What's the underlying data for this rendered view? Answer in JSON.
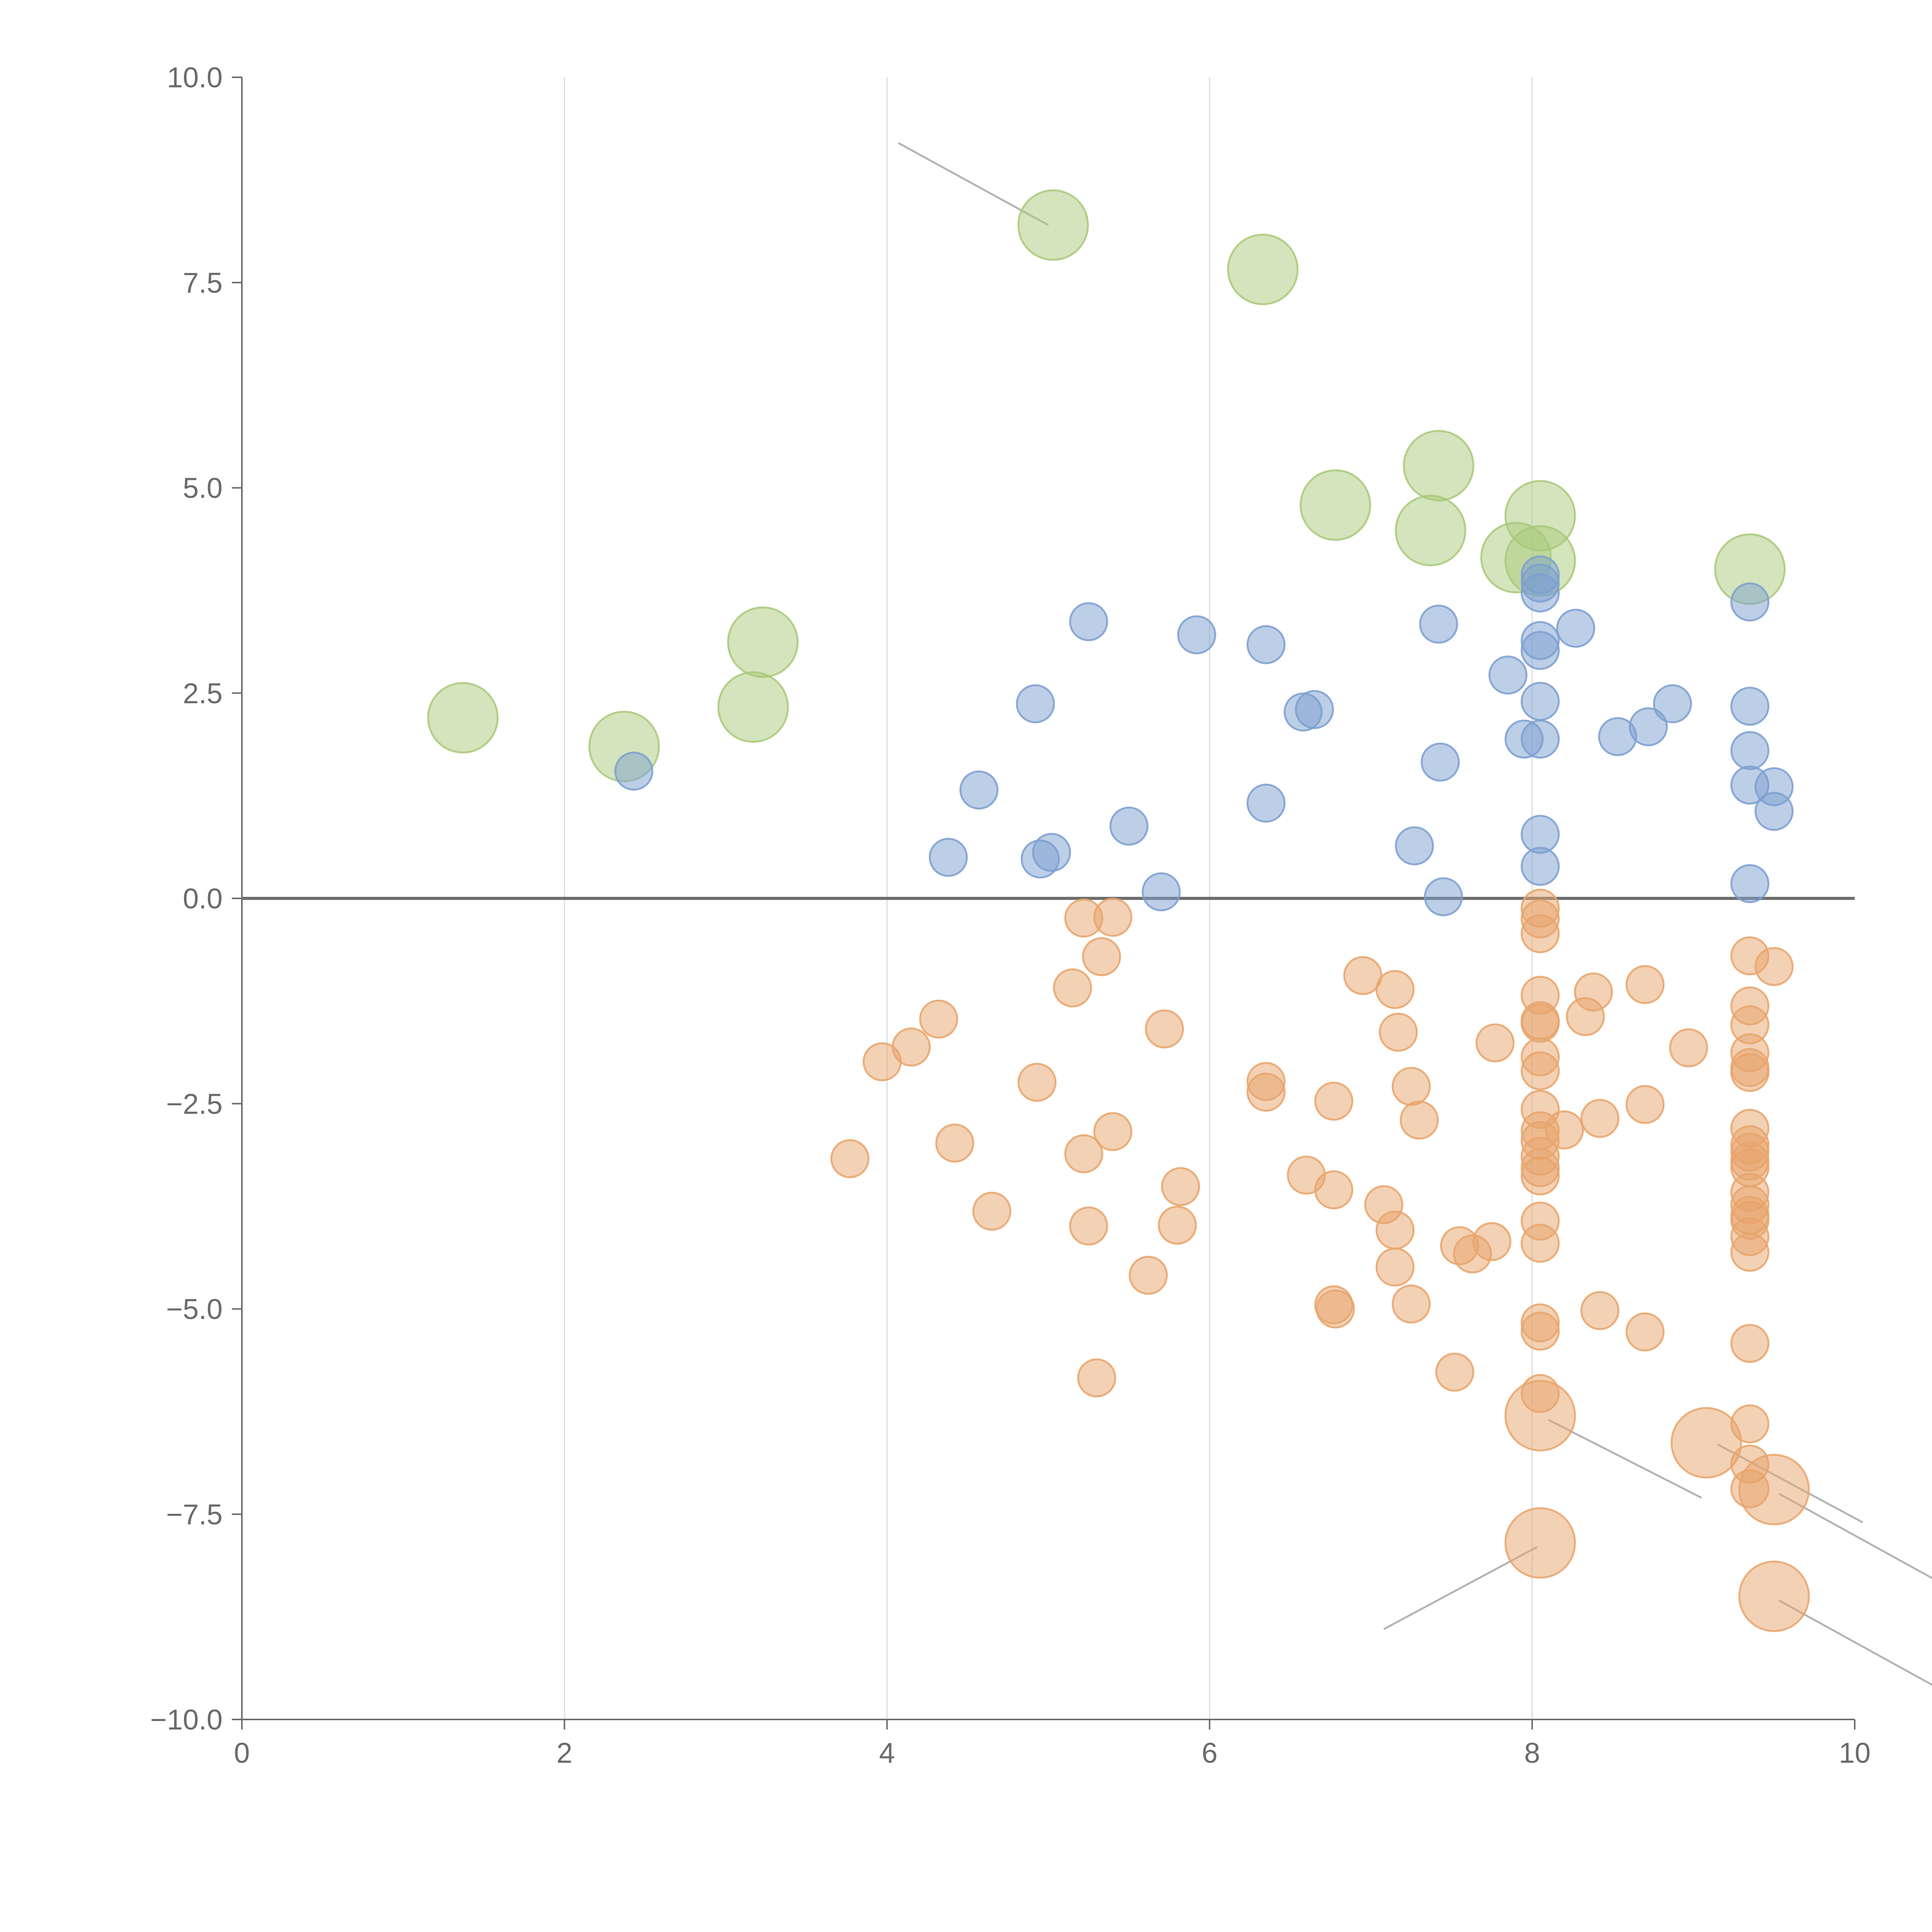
{
  "colors": {
    "green": "#a9c97a",
    "blue": "#7c9fd0",
    "orange": "#e8a46b",
    "axis": "#6e6e6e",
    "grid": "#dcdcdc"
  },
  "chart_data": {
    "type": "scatter",
    "title": "",
    "xlabel": "",
    "ylabel": "",
    "xlim": [
      0,
      10
    ],
    "ylim": [
      -10,
      10
    ],
    "x_ticks": [
      {
        "value": 0,
        "label": "0"
      },
      {
        "value": 2,
        "label": "2"
      },
      {
        "value": 4,
        "label": "4"
      },
      {
        "value": 6,
        "label": "6"
      },
      {
        "value": 8,
        "label": "8"
      },
      {
        "value": 10,
        "label": "10"
      }
    ],
    "y_ticks": [
      {
        "value": 10,
        "label": "10.0"
      },
      {
        "value": 7.5,
        "label": "7.5"
      },
      {
        "value": 5,
        "label": "5.0"
      },
      {
        "value": 2.5,
        "label": "2.5"
      },
      {
        "value": 0,
        "label": "0.0"
      },
      {
        "value": -2.5,
        "label": "−2.5"
      },
      {
        "value": -5,
        "label": "−5.0"
      },
      {
        "value": -7.5,
        "label": "−7.5"
      },
      {
        "value": -10,
        "label": "−10.0"
      }
    ],
    "grid": "vertical",
    "series": [
      {
        "name": "green",
        "color": "#a9c97a",
        "size": "large",
        "points": [
          [
            1.37,
            2.2
          ],
          [
            2.37,
            1.85
          ],
          [
            3.23,
            3.12
          ],
          [
            3.17,
            2.33
          ],
          [
            5.03,
            8.2
          ],
          [
            6.33,
            7.66
          ],
          [
            6.78,
            4.79
          ],
          [
            7.42,
            5.27
          ],
          [
            7.37,
            4.48
          ],
          [
            8.05,
            4.66
          ],
          [
            8.05,
            4.11
          ],
          [
            7.9,
            4.15
          ],
          [
            9.35,
            4.01
          ]
        ]
      },
      {
        "name": "blue",
        "color": "#7c9fd0",
        "size": "medium",
        "points": [
          [
            2.43,
            1.55
          ],
          [
            4.38,
            0.5
          ],
          [
            4.57,
            1.32
          ],
          [
            4.92,
            2.37
          ],
          [
            4.95,
            0.48
          ],
          [
            5.02,
            0.56
          ],
          [
            5.25,
            3.37
          ],
          [
            5.5,
            0.88
          ],
          [
            5.7,
            0.08
          ],
          [
            5.92,
            3.21
          ],
          [
            6.35,
            3.09
          ],
          [
            6.35,
            1.16
          ],
          [
            6.58,
            2.27
          ],
          [
            6.65,
            2.3
          ],
          [
            7.27,
            0.64
          ],
          [
            7.42,
            3.34
          ],
          [
            7.43,
            1.66
          ],
          [
            7.45,
            0.02
          ],
          [
            7.85,
            2.72
          ],
          [
            7.95,
            1.94
          ],
          [
            8.05,
            3.94
          ],
          [
            8.05,
            3.84
          ],
          [
            8.05,
            3.72
          ],
          [
            8.05,
            3.14
          ],
          [
            8.05,
            3.02
          ],
          [
            8.05,
            2.4
          ],
          [
            8.05,
            1.94
          ],
          [
            8.05,
            0.78
          ],
          [
            8.05,
            0.39
          ],
          [
            8.27,
            3.29
          ],
          [
            8.53,
            1.97
          ],
          [
            8.72,
            2.09
          ],
          [
            8.87,
            2.37
          ],
          [
            9.35,
            3.61
          ],
          [
            9.35,
            2.34
          ],
          [
            9.35,
            1.8
          ],
          [
            9.35,
            1.38
          ],
          [
            9.35,
            0.18
          ],
          [
            9.5,
            1.36
          ],
          [
            9.5,
            1.06
          ]
        ]
      },
      {
        "name": "orange",
        "color": "#e8a46b",
        "size": "medium",
        "points": [
          [
            3.77,
            -3.17
          ],
          [
            3.97,
            -1.99
          ],
          [
            4.15,
            -1.81
          ],
          [
            4.32,
            -1.47
          ],
          [
            4.42,
            -2.98
          ],
          [
            4.65,
            -3.81
          ],
          [
            4.93,
            -2.24
          ],
          [
            5.15,
            -1.09
          ],
          [
            5.22,
            -0.24
          ],
          [
            5.22,
            -3.11
          ],
          [
            5.25,
            -3.99
          ],
          [
            5.3,
            -5.84
          ],
          [
            5.33,
            -0.71
          ],
          [
            5.4,
            -0.23
          ],
          [
            5.4,
            -2.84
          ],
          [
            5.62,
            -4.59
          ],
          [
            5.72,
            -1.59
          ],
          [
            5.8,
            -3.98
          ],
          [
            5.82,
            -3.51
          ],
          [
            6.35,
            -2.23
          ],
          [
            6.35,
            -2.36
          ],
          [
            6.6,
            -3.37
          ],
          [
            6.77,
            -2.47
          ],
          [
            6.77,
            -3.55
          ],
          [
            6.77,
            -4.95
          ],
          [
            6.78,
            -5.0
          ],
          [
            6.95,
            -0.94
          ],
          [
            7.08,
            -3.73
          ],
          [
            7.15,
            -1.11
          ],
          [
            7.15,
            -4.04
          ],
          [
            7.15,
            -4.49
          ],
          [
            7.17,
            -1.63
          ],
          [
            7.25,
            -2.29
          ],
          [
            7.25,
            -4.94
          ],
          [
            7.3,
            -2.7
          ],
          [
            7.52,
            -5.77
          ],
          [
            7.55,
            -4.23
          ],
          [
            7.63,
            -4.33
          ],
          [
            7.75,
            -4.18
          ],
          [
            7.77,
            -1.76
          ],
          [
            8.05,
            -0.12
          ],
          [
            8.05,
            -0.25
          ],
          [
            8.05,
            -0.43
          ],
          [
            8.05,
            -1.18
          ],
          [
            8.05,
            -1.49
          ],
          [
            8.05,
            -1.52
          ],
          [
            8.05,
            -1.93
          ],
          [
            8.05,
            -2.1
          ],
          [
            8.05,
            -2.57
          ],
          [
            8.05,
            -2.83
          ],
          [
            8.05,
            -2.95
          ],
          [
            8.05,
            -3.14
          ],
          [
            8.05,
            -3.28
          ],
          [
            8.05,
            -3.38
          ],
          [
            8.05,
            -3.93
          ],
          [
            8.05,
            -4.2
          ],
          [
            8.05,
            -5.17
          ],
          [
            8.05,
            -5.27
          ],
          [
            8.05,
            -6.03
          ],
          [
            8.2,
            -2.82
          ],
          [
            8.33,
            -1.44
          ],
          [
            8.38,
            -1.14
          ],
          [
            8.42,
            -2.68
          ],
          [
            8.42,
            -5.02
          ],
          [
            8.7,
            -1.05
          ],
          [
            8.7,
            -5.28
          ],
          [
            8.7,
            -2.51
          ],
          [
            8.97,
            -1.82
          ],
          [
            9.35,
            -0.7
          ],
          [
            9.35,
            -1.31
          ],
          [
            9.35,
            -1.54
          ],
          [
            9.35,
            -1.88
          ],
          [
            9.35,
            -2.06
          ],
          [
            9.35,
            -2.12
          ],
          [
            9.35,
            -2.8
          ],
          [
            9.35,
            -3.0
          ],
          [
            9.35,
            -3.09
          ],
          [
            9.35,
            -3.2
          ],
          [
            9.35,
            -3.28
          ],
          [
            9.35,
            -3.58
          ],
          [
            9.35,
            -3.73
          ],
          [
            9.35,
            -3.86
          ],
          [
            9.35,
            -3.92
          ],
          [
            9.35,
            -4.12
          ],
          [
            9.35,
            -4.31
          ],
          [
            9.35,
            -5.42
          ],
          [
            9.35,
            -6.4
          ],
          [
            9.35,
            -6.89
          ],
          [
            9.35,
            -7.19
          ],
          [
            9.5,
            -0.83
          ]
        ]
      },
      {
        "name": "orange-large",
        "color": "#e8a46b",
        "size": "large",
        "points": [
          [
            8.05,
            -6.3
          ],
          [
            9.08,
            -6.63
          ],
          [
            9.5,
            -7.2
          ],
          [
            8.05,
            -7.85
          ],
          [
            9.5,
            -8.5
          ]
        ]
      }
    ],
    "leader_lines": [
      [
        [
          5.0,
          8.2
        ],
        [
          4.07,
          9.2
        ]
      ],
      [
        [
          8.1,
          -6.35
        ],
        [
          9.05,
          -7.3
        ]
      ],
      [
        [
          9.15,
          -6.65
        ],
        [
          10.05,
          -7.6
        ]
      ],
      [
        [
          9.53,
          -7.25
        ],
        [
          10.5,
          -8.3
        ]
      ],
      [
        [
          8.03,
          -7.9
        ],
        [
          7.08,
          -8.9
        ]
      ],
      [
        [
          9.53,
          -8.55
        ],
        [
          10.5,
          -9.6
        ]
      ]
    ]
  }
}
